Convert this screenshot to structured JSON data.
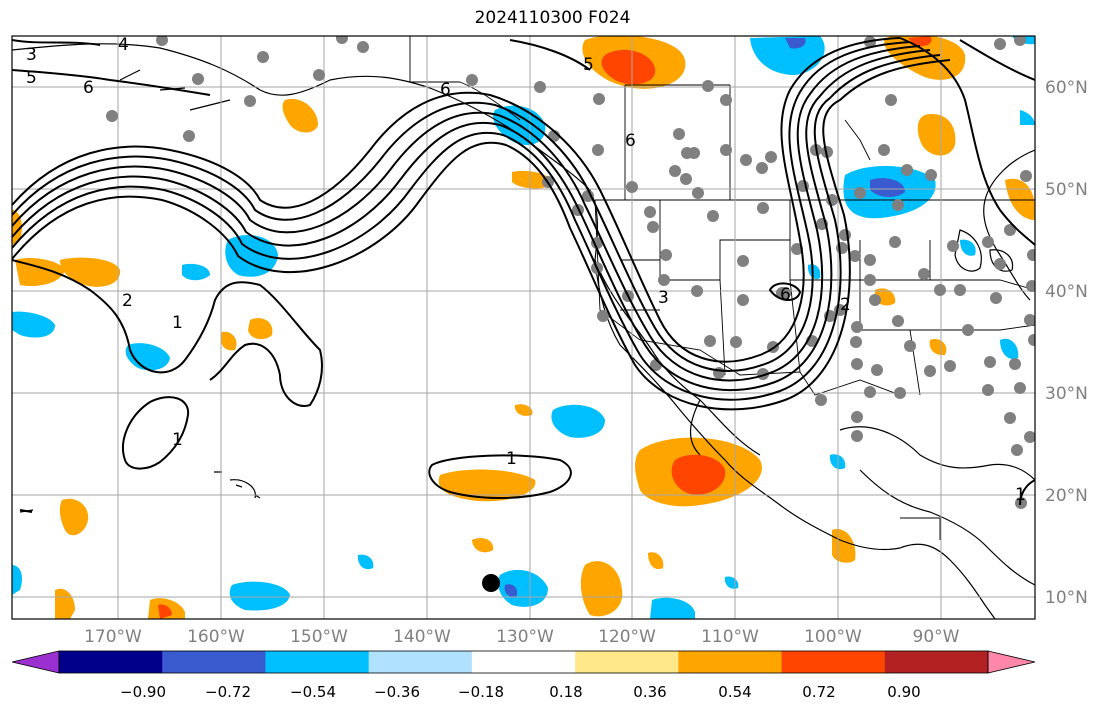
{
  "title": "2024110300 F024",
  "lon_labels": [
    "170°W",
    "160°W",
    "150°W",
    "140°W",
    "130°W",
    "120°W",
    "110°W",
    "100°W",
    "90°W"
  ],
  "lat_labels": [
    "60°N",
    "50°N",
    "40°N",
    "30°N",
    "20°N",
    "10°N"
  ],
  "colorbar": {
    "ticks": [
      "−0.90",
      "−0.72",
      "−0.54",
      "−0.36",
      "−0.18",
      "0.18",
      "0.36",
      "0.54",
      "0.72",
      "0.90"
    ],
    "colors": [
      "#9b30d0",
      "#00008b",
      "#3a5bcf",
      "#00bfff",
      "#b0e2ff",
      "#ffffff",
      "#ffe88a",
      "#ffa500",
      "#ff4500",
      "#b22222",
      "#ff88aa"
    ]
  },
  "contour_labels": [
    "3",
    "4",
    "5",
    "6",
    "6",
    "6",
    "5",
    "1",
    "2",
    "1",
    "1",
    "3",
    "6",
    "2",
    "1"
  ],
  "marker": "black-dot"
}
